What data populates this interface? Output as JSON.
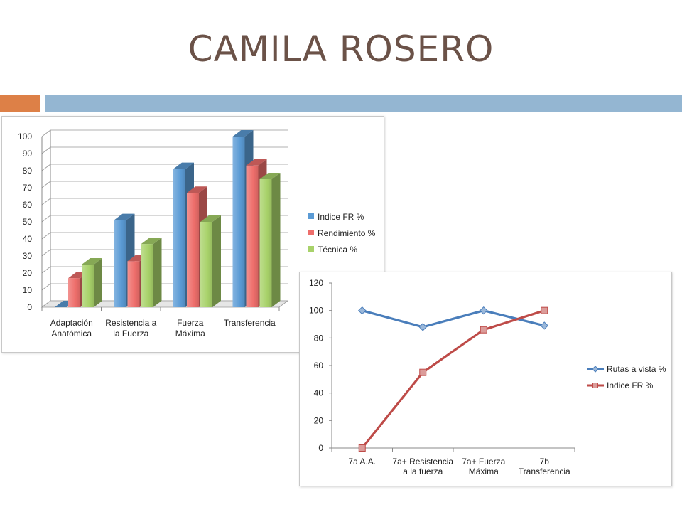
{
  "slide": {
    "title": "CAMILA ROSERO",
    "colors": {
      "title": "#6b5248",
      "accent_orange": "#dd8047",
      "accent_blue": "#94b6d2"
    }
  },
  "chart_data": [
    {
      "type": "bar",
      "categories": [
        [
          "Adaptación",
          "Anatómica"
        ],
        [
          "Resistencia a",
          "la Fuerza"
        ],
        [
          "Fuerza",
          "Máxima"
        ],
        [
          "Transferencia"
        ]
      ],
      "series": [
        {
          "name": "Indice FR %",
          "values": [
            0,
            51,
            81,
            100
          ],
          "color": "#5b9bd5"
        },
        {
          "name": "Rendimiento %",
          "values": [
            17,
            27,
            67,
            83
          ],
          "color": "#ee6e6b"
        },
        {
          "name": "Técnica %",
          "values": [
            25,
            37,
            50,
            75
          ],
          "color": "#a8d26a"
        }
      ],
      "ylim": [
        0,
        100
      ],
      "yticks": [
        "0",
        "10",
        "20",
        "30",
        "40",
        "50",
        "60",
        "70",
        "80",
        "90",
        "100"
      ],
      "grid": true,
      "legend": "right"
    },
    {
      "type": "line",
      "categories": [
        [
          "7a A.A."
        ],
        [
          "7a+ Resistencia",
          "a la fuerza"
        ],
        [
          "7a+ Fuerza",
          "Máxima"
        ],
        [
          "7b",
          "Transferencia"
        ]
      ],
      "series": [
        {
          "name": "Rutas a vista %",
          "values": [
            100,
            88,
            100,
            89
          ],
          "color": "#4a7ebb",
          "marker": "diamond"
        },
        {
          "name": "Indice FR %",
          "values": [
            0,
            55,
            86,
            100
          ],
          "color": "#be4b48",
          "marker": "square"
        }
      ],
      "ylim": [
        0,
        120
      ],
      "yticks": [
        "0",
        "20",
        "40",
        "60",
        "80",
        "100",
        "120"
      ],
      "grid": false,
      "legend": "right"
    }
  ]
}
